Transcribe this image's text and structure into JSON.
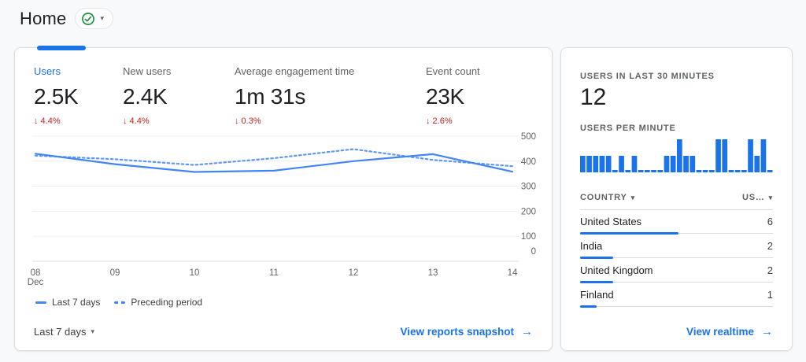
{
  "header": {
    "title": "Home"
  },
  "icons": {
    "down_arrow": "↓",
    "caret": "▾",
    "arrow_right": "→",
    "check": "✓"
  },
  "metrics_card": {
    "metrics": [
      {
        "label": "Users",
        "value": "2.5K",
        "delta": "4.4%",
        "direction": "down",
        "active": true
      },
      {
        "label": "New users",
        "value": "2.4K",
        "delta": "4.4%",
        "direction": "down",
        "active": false
      },
      {
        "label": "Average engagement time",
        "value": "1m 31s",
        "delta": "0.3%",
        "direction": "down",
        "active": false
      },
      {
        "label": "Event count",
        "value": "23K",
        "delta": "2.6%",
        "direction": "down",
        "active": false
      }
    ],
    "legend": [
      {
        "label": "Last 7 days",
        "style": "solid"
      },
      {
        "label": "Preceding period",
        "style": "dashed"
      }
    ],
    "period_selector": "Last 7 days",
    "footer_link": "View reports snapshot"
  },
  "realtime_card": {
    "users_last_30_label": "USERS IN LAST 30 MINUTES",
    "users_last_30_value": "12",
    "per_minute_label": "USERS PER MINUTE",
    "table": {
      "country_header": "COUNTRY",
      "users_header": "US…",
      "rows": [
        {
          "country": "United States",
          "users": "6"
        },
        {
          "country": "India",
          "users": "2"
        },
        {
          "country": "United Kingdom",
          "users": "2"
        },
        {
          "country": "Finland",
          "users": "1"
        }
      ]
    },
    "footer_link": "View realtime"
  },
  "chart_data": [
    {
      "type": "line",
      "title": "Users by day: last 7 days vs preceding period",
      "x": [
        "08",
        "09",
        "10",
        "11",
        "12",
        "13",
        "14"
      ],
      "x_sublabel": "Dec",
      "series": [
        {
          "name": "Last 7 days",
          "style": "solid",
          "values": [
            430,
            388,
            357,
            362,
            400,
            428,
            358
          ]
        },
        {
          "name": "Preceding period",
          "style": "dashed",
          "values": [
            422,
            408,
            385,
            412,
            448,
            405,
            380
          ]
        }
      ],
      "ylim": [
        0,
        500
      ],
      "yticks": [
        0,
        100,
        200,
        300,
        400,
        500
      ],
      "grid": "horizontal",
      "legend_position": "bottom-left"
    },
    {
      "type": "bar",
      "title": "Users per minute (last 30 minutes)",
      "values": [
        1,
        1,
        1,
        1,
        1,
        0,
        1,
        0,
        1,
        0,
        0,
        0,
        0,
        1,
        1,
        2,
        1,
        1,
        0,
        0,
        0,
        2,
        2,
        0,
        0,
        0,
        2,
        1,
        2,
        0
      ],
      "ylim": [
        0,
        2
      ]
    }
  ],
  "colors": {
    "accent": "#1a73e8",
    "line": "#4285f4",
    "line_secondary": "#5e97f6",
    "negative": "#c5221f",
    "success": "#1e8e3e",
    "text": "#202124",
    "muted": "#5f6368",
    "grid": "#ebedef",
    "axis": "#dadce0",
    "border": "#dadce0"
  }
}
